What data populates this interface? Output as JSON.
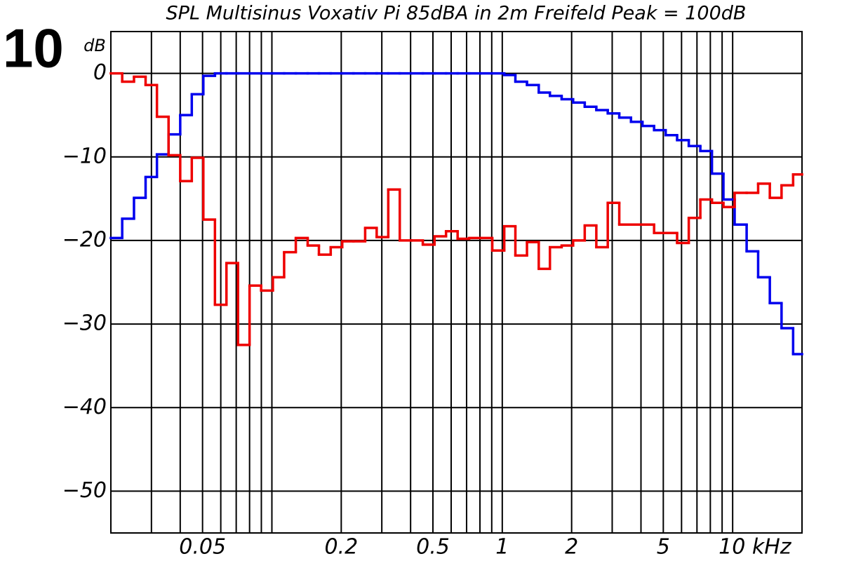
{
  "chart_data": {
    "type": "step",
    "title": "SPL Multisinus Voxativ Pi 85dBA in 2m Freifeld Peak = 100dB",
    "figure_label": "10",
    "y_label": "dB",
    "log_x": true,
    "grid": true,
    "xlim": [
      0.02,
      20
    ],
    "ylim": [
      -55,
      5
    ],
    "xticks": [
      0.05,
      0.2,
      0.5,
      1,
      2,
      5,
      {
        "value": 10,
        "label": "10 kHz"
      }
    ],
    "xminor": [
      0.03,
      0.04,
      0.06,
      0.07,
      0.08,
      0.09,
      0.1,
      0.3,
      0.4,
      0.6,
      0.7,
      0.8,
      0.9,
      3,
      4,
      6,
      7,
      8,
      9
    ],
    "yticks": [
      {
        "value": 0,
        "label": "0"
      },
      {
        "value": -10,
        "label": "−10"
      },
      {
        "value": -20,
        "label": "−20"
      },
      {
        "value": -30,
        "label": "−30"
      },
      {
        "value": -40,
        "label": "−40"
      },
      {
        "value": -50,
        "label": "−50"
      }
    ],
    "x": [
      0.02,
      0.0224,
      0.0252,
      0.0283,
      0.0317,
      0.0356,
      0.04,
      0.0449,
      0.0504,
      0.0566,
      0.0635,
      0.0713,
      0.08,
      0.0898,
      0.101,
      0.113,
      0.127,
      0.143,
      0.16,
      0.18,
      0.202,
      0.226,
      0.254,
      0.285,
      0.32,
      0.359,
      0.403,
      0.452,
      0.508,
      0.57,
      0.64,
      0.718,
      0.806,
      0.905,
      1.02,
      1.14,
      1.28,
      1.44,
      1.61,
      1.81,
      2.03,
      2.28,
      2.56,
      2.87,
      3.22,
      3.62,
      4.06,
      4.56,
      5.12,
      5.74,
      6.45,
      7.24,
      8.13,
      9.12,
      10.2,
      11.5,
      12.9,
      14.5,
      16.3,
      18.3
    ],
    "series": [
      {
        "color": "#0000ee",
        "values": [
          -19.7,
          -17.4,
          -14.9,
          -12.4,
          -9.7,
          -7.3,
          -5.0,
          -2.5,
          -0.3,
          0,
          0,
          0,
          0,
          0,
          0,
          0,
          0,
          0,
          0,
          0,
          0,
          0,
          0,
          0,
          0,
          0,
          0,
          0,
          0,
          0,
          0,
          0,
          0,
          0,
          -0.2,
          -1.0,
          -1.4,
          -2.3,
          -2.7,
          -3.1,
          -3.5,
          -4.0,
          -4.4,
          -4.8,
          -5.3,
          -5.8,
          -6.3,
          -6.8,
          -7.4,
          -8.0,
          -8.7,
          -9.3,
          -12.0,
          -15.1,
          -18.1,
          -21.3,
          -24.4,
          -27.5,
          -30.5,
          -33.6
        ]
      },
      {
        "color": "#ee0000",
        "values": [
          0,
          -1.0,
          -0.4,
          -1.4,
          -5.2,
          -9.8,
          -12.9,
          -10.1,
          -17.5,
          -27.7,
          -22.7,
          -32.5,
          -25.4,
          -26.0,
          -24.4,
          -21.4,
          -19.7,
          -20.6,
          -21.7,
          -20.8,
          -20.1,
          -20.1,
          -18.5,
          -19.6,
          -13.9,
          -20.0,
          -20.0,
          -20.5,
          -19.5,
          -18.9,
          -19.8,
          -19.7,
          -19.7,
          -21.2,
          -18.3,
          -21.8,
          -20.2,
          -23.4,
          -20.8,
          -20.6,
          -20.0,
          -18.2,
          -20.8,
          -15.5,
          -18.1,
          -18.1,
          -18.1,
          -19.1,
          -19.1,
          -20.3,
          -17.3,
          -15.1,
          -15.5,
          -16.0,
          -14.3,
          -14.3,
          -13.2,
          -14.9,
          -13.4,
          -12.1
        ]
      }
    ]
  }
}
